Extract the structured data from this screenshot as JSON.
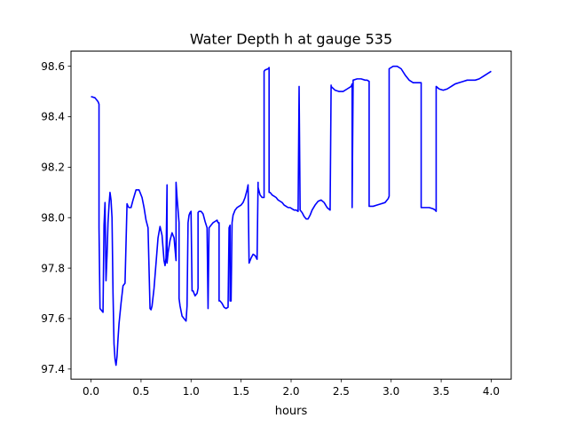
{
  "chart_data": {
    "type": "line",
    "title": "Water Depth h at gauge 535",
    "xlabel": "hours",
    "ylabel": "",
    "xlim": [
      -0.2,
      4.2
    ],
    "ylim": [
      97.36,
      98.66
    ],
    "xticks": [
      0.0,
      0.5,
      1.0,
      1.5,
      2.0,
      2.5,
      3.0,
      3.5,
      4.0
    ],
    "xtick_labels": [
      "0.0",
      "0.5",
      "1.0",
      "1.5",
      "2.0",
      "2.5",
      "3.0",
      "3.5",
      "4.0"
    ],
    "yticks": [
      97.4,
      97.6,
      97.8,
      98.0,
      98.2,
      98.4,
      98.6
    ],
    "ytick_labels": [
      "97.4",
      "97.6",
      "97.8",
      "98.0",
      "98.2",
      "98.4",
      "98.6"
    ],
    "grid": false,
    "series": [
      {
        "color": "#0000ff",
        "x": [
          0.0,
          0.04,
          0.07,
          0.08,
          0.08,
          0.09,
          0.12,
          0.13,
          0.14,
          0.15,
          0.16,
          0.17,
          0.18,
          0.19,
          0.2,
          0.21,
          0.22,
          0.23,
          0.24,
          0.25,
          0.26,
          0.27,
          0.28,
          0.3,
          0.32,
          0.34,
          0.36,
          0.37,
          0.38,
          0.4,
          0.42,
          0.45,
          0.48,
          0.51,
          0.53,
          0.55,
          0.57,
          0.59,
          0.6,
          0.61,
          0.63,
          0.65,
          0.67,
          0.69,
          0.71,
          0.73,
          0.74,
          0.75,
          0.76,
          0.76,
          0.77,
          0.79,
          0.81,
          0.83,
          0.85,
          0.85,
          0.86,
          0.87,
          0.88,
          0.88,
          0.89,
          0.91,
          0.93,
          0.95,
          0.96,
          0.97,
          0.98,
          0.99,
          1.0,
          1.01,
          1.02,
          1.04,
          1.06,
          1.07,
          1.07,
          1.08,
          1.1,
          1.12,
          1.14,
          1.16,
          1.17,
          1.18,
          1.2,
          1.22,
          1.24,
          1.26,
          1.27,
          1.28,
          1.28,
          1.29,
          1.31,
          1.33,
          1.35,
          1.37,
          1.38,
          1.39,
          1.39,
          1.4,
          1.41,
          1.42,
          1.44,
          1.46,
          1.48,
          1.5,
          1.52,
          1.54,
          1.56,
          1.57,
          1.58,
          1.59,
          1.6,
          1.62,
          1.64,
          1.66,
          1.67,
          1.67,
          1.69,
          1.71,
          1.73,
          1.73,
          1.74,
          1.77,
          1.78,
          1.78,
          1.79,
          1.81,
          1.83,
          1.85,
          1.87,
          1.89,
          1.91,
          1.93,
          1.95,
          1.97,
          1.99,
          2.01,
          2.03,
          2.05,
          2.07,
          2.08,
          2.08,
          2.09,
          2.09,
          2.11,
          2.13,
          2.15,
          2.17,
          2.19,
          2.21,
          2.24,
          2.27,
          2.3,
          2.33,
          2.36,
          2.39,
          2.4,
          2.4,
          2.44,
          2.48,
          2.52,
          2.56,
          2.6,
          2.61,
          2.61,
          2.62,
          2.62,
          2.66,
          2.7,
          2.74,
          2.76,
          2.78,
          2.78,
          2.82,
          2.86,
          2.9,
          2.94,
          2.97,
          2.98,
          2.98,
          3.02,
          3.06,
          3.1,
          3.14,
          3.18,
          3.22,
          3.26,
          3.3,
          3.3,
          3.34,
          3.38,
          3.42,
          3.44,
          3.45,
          3.45,
          3.48,
          3.52,
          3.56,
          3.6,
          3.64,
          3.68,
          3.72,
          3.76,
          3.8,
          3.84,
          3.88,
          3.92,
          3.96,
          4.0
        ],
        "y": [
          98.48,
          98.475,
          98.46,
          98.45,
          97.96,
          97.64,
          97.625,
          97.97,
          98.06,
          97.75,
          97.85,
          97.98,
          98.05,
          98.1,
          98.07,
          98.0,
          97.7,
          97.5,
          97.44,
          97.415,
          97.45,
          97.52,
          97.58,
          97.66,
          97.73,
          97.74,
          98.055,
          98.045,
          98.04,
          98.04,
          98.07,
          98.11,
          98.11,
          98.08,
          98.04,
          97.99,
          97.96,
          97.64,
          97.635,
          97.65,
          97.72,
          97.82,
          97.92,
          97.965,
          97.93,
          97.83,
          97.81,
          97.84,
          98.13,
          97.82,
          97.86,
          97.91,
          97.94,
          97.92,
          97.83,
          98.14,
          98.08,
          98.03,
          97.98,
          97.68,
          97.65,
          97.61,
          97.6,
          97.59,
          97.65,
          97.98,
          98.01,
          98.02,
          98.025,
          97.71,
          97.71,
          97.69,
          97.7,
          97.72,
          98.02,
          98.025,
          98.025,
          98.015,
          97.985,
          97.96,
          97.64,
          97.96,
          97.97,
          97.98,
          97.985,
          97.99,
          97.98,
          97.98,
          97.67,
          97.67,
          97.66,
          97.645,
          97.64,
          97.645,
          97.96,
          97.97,
          97.67,
          97.67,
          97.98,
          98.01,
          98.03,
          98.04,
          98.045,
          98.05,
          98.06,
          98.08,
          98.11,
          98.13,
          97.82,
          97.83,
          97.84,
          97.855,
          97.85,
          97.835,
          98.14,
          98.12,
          98.09,
          98.08,
          98.08,
          98.58,
          98.585,
          98.59,
          98.595,
          98.1,
          98.1,
          98.09,
          98.085,
          98.08,
          98.07,
          98.065,
          98.06,
          98.05,
          98.045,
          98.04,
          98.04,
          98.035,
          98.03,
          98.03,
          98.025,
          98.52,
          98.515,
          98.04,
          98.03,
          98.02,
          98.005,
          97.995,
          97.995,
          98.01,
          98.03,
          98.05,
          98.065,
          98.07,
          98.06,
          98.04,
          98.03,
          98.525,
          98.52,
          98.505,
          98.5,
          98.5,
          98.51,
          98.52,
          98.53,
          98.04,
          98.54,
          98.545,
          98.55,
          98.55,
          98.545,
          98.545,
          98.54,
          98.045,
          98.045,
          98.05,
          98.055,
          98.06,
          98.075,
          98.085,
          98.59,
          98.6,
          98.6,
          98.59,
          98.565,
          98.545,
          98.535,
          98.535,
          98.535,
          98.04,
          98.04,
          98.04,
          98.035,
          98.03,
          98.025,
          98.52,
          98.51,
          98.505,
          98.51,
          98.52,
          98.53,
          98.535,
          98.54,
          98.545,
          98.545,
          98.545,
          98.55,
          98.56,
          98.57,
          98.58
        ]
      }
    ]
  }
}
